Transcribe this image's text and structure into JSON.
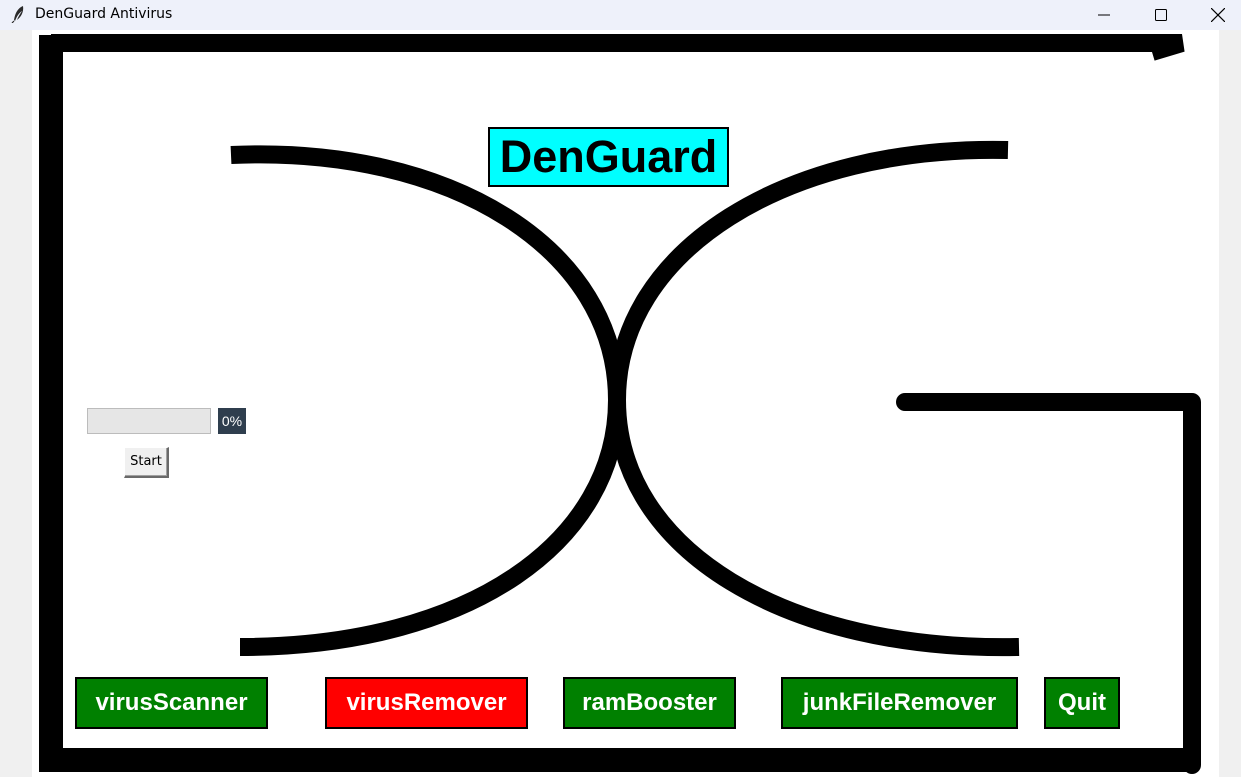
{
  "window": {
    "title": "DenGuard Antivirus"
  },
  "brand": {
    "title": "DenGuard",
    "title_bg": "#00ffff"
  },
  "progress": {
    "value_percent": 0,
    "label": "0%",
    "start_label": "Start"
  },
  "buttons": [
    {
      "id": "virus-scanner",
      "label": "virusScanner",
      "color": "#008000"
    },
    {
      "id": "virus-remover",
      "label": "virusRemover",
      "color": "#ff0000"
    },
    {
      "id": "ram-booster",
      "label": "ramBooster",
      "color": "#008000"
    },
    {
      "id": "junk-file-remover",
      "label": "junkFileRemover",
      "color": "#008000"
    },
    {
      "id": "quit",
      "label": "Quit",
      "color": "#008000"
    }
  ],
  "icons": {
    "app": "feather-icon",
    "minimize": "minimize-icon",
    "maximize": "maximize-icon",
    "close": "close-icon"
  }
}
